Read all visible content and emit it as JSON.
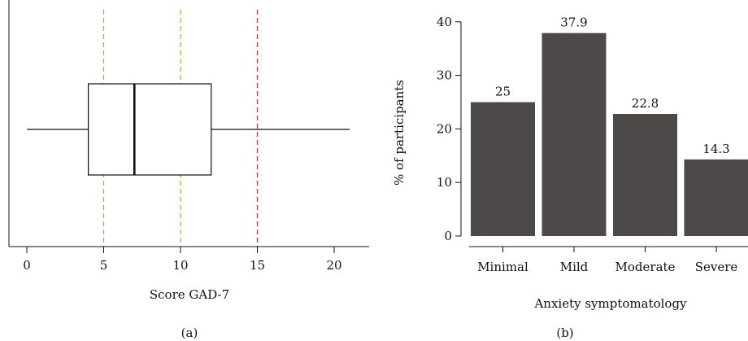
{
  "chart_data": [
    {
      "type": "boxplot",
      "panel_label": "(a)",
      "xlabel": "Score GAD-7",
      "ylabel": "",
      "xlim": [
        -1,
        22.5
      ],
      "xticks": [
        0,
        5,
        10,
        15,
        20
      ],
      "whisker_low": 0,
      "q1": 4,
      "median": 7,
      "q3": 12,
      "whisker_high": 21,
      "cutoffs": [
        {
          "value": 5,
          "color": "#8fbf2a"
        },
        {
          "value": 10,
          "color": "#f2a11e"
        },
        {
          "value": 15,
          "color": "#d93a2b"
        }
      ]
    },
    {
      "type": "bar",
      "panel_label": "(b)",
      "xlabel": "Anxiety symptomatology",
      "ylabel": "% of participants",
      "ylim": [
        0,
        42
      ],
      "yticks": [
        0,
        10,
        20,
        30,
        40
      ],
      "categories": [
        "Minimal",
        "Mild",
        "Moderate",
        "Severe"
      ],
      "values": [
        25,
        37.9,
        22.8,
        14.3
      ],
      "value_labels": [
        "25",
        "37.9",
        "22.8",
        "14.3"
      ],
      "bar_color": "#4d4948"
    }
  ]
}
